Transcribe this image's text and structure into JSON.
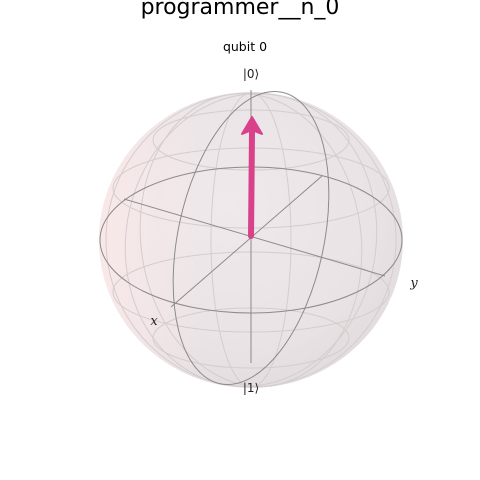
{
  "figure": {
    "title": "programmer__n_0",
    "subtitle": "qubit 0"
  },
  "sphere": {
    "pole_labels": {
      "north": "|0⟩",
      "south": "|1⟩"
    },
    "axis_labels": {
      "x": "x",
      "y": "y"
    }
  },
  "colors": {
    "sphere_fill": "#ece6e8",
    "sphere_fill_edge": "#f6e9e9",
    "wireframe_front": "#8c8c8c",
    "wireframe_back": "#d2cccc",
    "state_vector": "#d9418b"
  },
  "state_vector": {
    "theta_deg": 0,
    "phi_deg": 0,
    "points_to": "|0⟩"
  }
}
